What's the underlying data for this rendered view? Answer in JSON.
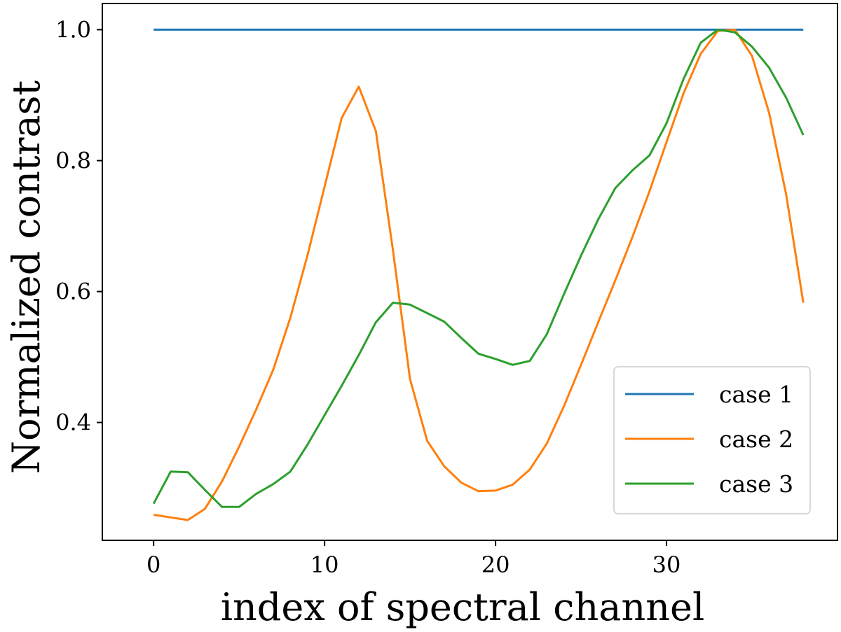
{
  "chart_data": {
    "type": "line",
    "xlabel": "index of spectral channel",
    "ylabel": "Normalized contrast",
    "xlim": [
      -3,
      40
    ],
    "ylim": [
      0.22,
      1.04
    ],
    "xticks": [
      0,
      10,
      20,
      30
    ],
    "yticks": [
      0.4,
      0.6,
      0.8,
      1.0
    ],
    "xtick_labels": [
      "0",
      "10",
      "20",
      "30"
    ],
    "ytick_labels": [
      "0.4",
      "0.6",
      "0.8",
      "1.0"
    ],
    "grid": false,
    "legend_position": "lower-right",
    "x": [
      0,
      1,
      2,
      3,
      4,
      5,
      6,
      7,
      8,
      9,
      10,
      11,
      12,
      13,
      14,
      15,
      16,
      17,
      18,
      19,
      20,
      21,
      22,
      23,
      24,
      25,
      26,
      27,
      28,
      29,
      30,
      31,
      32,
      33,
      34,
      35,
      36,
      37,
      38
    ],
    "series": [
      {
        "name": "case 1",
        "color": "#1f77b4",
        "values": [
          1,
          1,
          1,
          1,
          1,
          1,
          1,
          1,
          1,
          1,
          1,
          1,
          1,
          1,
          1,
          1,
          1,
          1,
          1,
          1,
          1,
          1,
          1,
          1,
          1,
          1,
          1,
          1,
          1,
          1,
          1,
          1,
          1,
          1,
          1,
          1,
          1,
          1,
          1
        ]
      },
      {
        "name": "case 2",
        "color": "#ff7f0e",
        "values": [
          0.259,
          0.255,
          0.251,
          0.268,
          0.31,
          0.363,
          0.42,
          0.481,
          0.56,
          0.655,
          0.76,
          0.865,
          0.913,
          0.845,
          0.663,
          0.466,
          0.372,
          0.333,
          0.308,
          0.295,
          0.296,
          0.305,
          0.328,
          0.368,
          0.425,
          0.488,
          0.553,
          0.617,
          0.683,
          0.753,
          0.828,
          0.903,
          0.963,
          0.998,
          1.0,
          0.96,
          0.873,
          0.748,
          0.583
        ]
      },
      {
        "name": "case 3",
        "color": "#2ca02c",
        "values": [
          0.276,
          0.325,
          0.324,
          0.297,
          0.271,
          0.271,
          0.291,
          0.306,
          0.325,
          0.366,
          0.411,
          0.456,
          0.503,
          0.553,
          0.583,
          0.58,
          0.567,
          0.554,
          0.529,
          0.505,
          0.497,
          0.488,
          0.494,
          0.535,
          0.596,
          0.655,
          0.71,
          0.758,
          0.785,
          0.808,
          0.857,
          0.925,
          0.98,
          1.0,
          0.996,
          0.974,
          0.942,
          0.896,
          0.839
        ]
      }
    ]
  }
}
